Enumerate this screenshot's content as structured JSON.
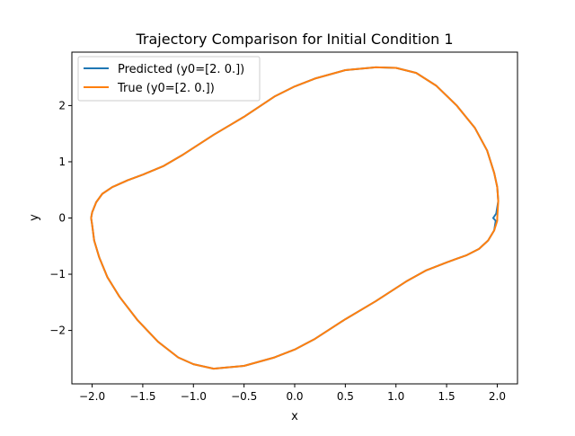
{
  "chart_data": {
    "type": "line",
    "title": "Trajectory Comparison for Initial Condition 1",
    "xlabel": "x",
    "ylabel": "y",
    "xlim": [
      -2.2,
      2.2
    ],
    "ylim": [
      -2.95,
      2.95
    ],
    "xticks": [
      -2.0,
      -1.5,
      -1.0,
      -0.5,
      0.0,
      0.5,
      1.0,
      1.5,
      2.0
    ],
    "xtick_labels": [
      "−2.0",
      "−1.5",
      "−1.0",
      "−0.5",
      "0.0",
      "0.5",
      "1.0",
      "1.5",
      "2.0"
    ],
    "yticks": [
      -2,
      -1,
      0,
      1,
      2
    ],
    "ytick_labels": [
      "−2",
      "−1",
      "0",
      "1",
      "2"
    ],
    "grid": false,
    "legend_position": "top-left",
    "series": [
      {
        "name": "Predicted (y0=[2. 0.])",
        "color": "#1f77b4",
        "points": [
          [
            1.96,
            0.0
          ],
          [
            1.99,
            0.08
          ],
          [
            2.01,
            0.3
          ],
          [
            2.0,
            0.55
          ],
          [
            1.97,
            0.8
          ],
          [
            1.9,
            1.2
          ],
          [
            1.78,
            1.6
          ],
          [
            1.6,
            2.0
          ],
          [
            1.4,
            2.35
          ],
          [
            1.2,
            2.58
          ],
          [
            1.0,
            2.67
          ],
          [
            0.8,
            2.68
          ],
          [
            0.5,
            2.63
          ],
          [
            0.2,
            2.48
          ],
          [
            0.0,
            2.34
          ],
          [
            -0.2,
            2.16
          ],
          [
            -0.5,
            1.8
          ],
          [
            -0.8,
            1.48
          ],
          [
            -1.1,
            1.13
          ],
          [
            -1.3,
            0.92
          ],
          [
            -1.5,
            0.77
          ],
          [
            -1.65,
            0.67
          ],
          [
            -1.8,
            0.55
          ],
          [
            -1.9,
            0.43
          ],
          [
            -1.96,
            0.28
          ],
          [
            -2.0,
            0.1
          ],
          [
            -2.01,
            0.0
          ],
          [
            -2.0,
            -0.12
          ],
          [
            -1.98,
            -0.4
          ],
          [
            -1.93,
            -0.7
          ],
          [
            -1.85,
            -1.05
          ],
          [
            -1.73,
            -1.4
          ],
          [
            -1.55,
            -1.82
          ],
          [
            -1.35,
            -2.2
          ],
          [
            -1.15,
            -2.48
          ],
          [
            -1.0,
            -2.6
          ],
          [
            -0.8,
            -2.68
          ],
          [
            -0.5,
            -2.63
          ],
          [
            -0.2,
            -2.48
          ],
          [
            0.0,
            -2.34
          ],
          [
            0.2,
            -2.15
          ],
          [
            0.5,
            -1.8
          ],
          [
            0.8,
            -1.48
          ],
          [
            1.1,
            -1.13
          ],
          [
            1.3,
            -0.93
          ],
          [
            1.5,
            -0.79
          ],
          [
            1.7,
            -0.66
          ],
          [
            1.82,
            -0.55
          ],
          [
            1.91,
            -0.4
          ],
          [
            1.97,
            -0.22
          ],
          [
            1.985,
            -0.05
          ],
          [
            1.96,
            0.0
          ]
        ]
      },
      {
        "name": "True (y0=[2. 0.])",
        "color": "#ff7f0e",
        "points": [
          [
            2.0,
            0.0
          ],
          [
            2.01,
            0.3
          ],
          [
            2.0,
            0.55
          ],
          [
            1.97,
            0.8
          ],
          [
            1.9,
            1.2
          ],
          [
            1.78,
            1.6
          ],
          [
            1.6,
            2.0
          ],
          [
            1.4,
            2.35
          ],
          [
            1.2,
            2.58
          ],
          [
            1.0,
            2.67
          ],
          [
            0.8,
            2.68
          ],
          [
            0.5,
            2.63
          ],
          [
            0.2,
            2.48
          ],
          [
            0.0,
            2.34
          ],
          [
            -0.2,
            2.16
          ],
          [
            -0.5,
            1.8
          ],
          [
            -0.8,
            1.48
          ],
          [
            -1.1,
            1.13
          ],
          [
            -1.3,
            0.92
          ],
          [
            -1.5,
            0.77
          ],
          [
            -1.65,
            0.67
          ],
          [
            -1.8,
            0.55
          ],
          [
            -1.9,
            0.43
          ],
          [
            -1.96,
            0.28
          ],
          [
            -2.0,
            0.1
          ],
          [
            -2.01,
            0.0
          ],
          [
            -2.0,
            -0.12
          ],
          [
            -1.98,
            -0.4
          ],
          [
            -1.93,
            -0.7
          ],
          [
            -1.85,
            -1.05
          ],
          [
            -1.73,
            -1.4
          ],
          [
            -1.55,
            -1.82
          ],
          [
            -1.35,
            -2.2
          ],
          [
            -1.15,
            -2.48
          ],
          [
            -1.0,
            -2.6
          ],
          [
            -0.8,
            -2.68
          ],
          [
            -0.5,
            -2.63
          ],
          [
            -0.2,
            -2.48
          ],
          [
            0.0,
            -2.34
          ],
          [
            0.2,
            -2.15
          ],
          [
            0.5,
            -1.8
          ],
          [
            0.8,
            -1.48
          ],
          [
            1.1,
            -1.13
          ],
          [
            1.3,
            -0.93
          ],
          [
            1.5,
            -0.79
          ],
          [
            1.7,
            -0.66
          ],
          [
            1.82,
            -0.55
          ],
          [
            1.91,
            -0.4
          ],
          [
            1.97,
            -0.22
          ],
          [
            2.0,
            -0.05
          ],
          [
            2.0,
            0.0
          ]
        ]
      }
    ]
  }
}
